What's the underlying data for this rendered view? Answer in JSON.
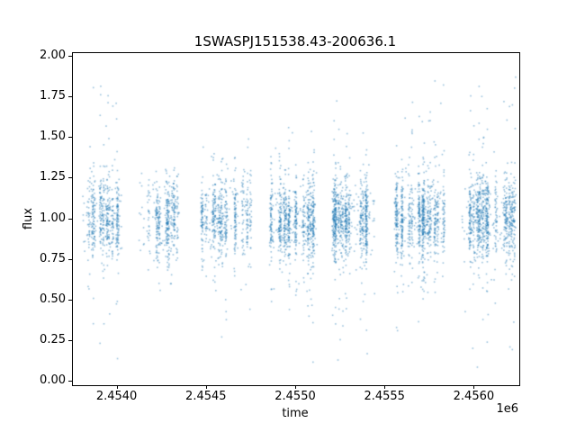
{
  "chart_data": {
    "type": "scatter",
    "title": "1SWASPJ151538.43-200636.1",
    "xlabel": "time",
    "ylabel": "flux",
    "x_offset_label": "1e6",
    "xlim": [
      2.45375,
      2.45625
    ],
    "ylim": [
      -0.02,
      2.02
    ],
    "x_unit_scale": 1000000,
    "grid": false,
    "legend": null,
    "point_color": "#1f77b4",
    "point_alpha": 0.45,
    "marker_size_px": 1.6,
    "xticks": [
      {
        "value": 2.454,
        "label": "2.4540"
      },
      {
        "value": 2.4545,
        "label": "2.4545"
      },
      {
        "value": 2.455,
        "label": "2.4550"
      },
      {
        "value": 2.4555,
        "label": "2.4555"
      },
      {
        "value": 2.456,
        "label": "2.4560"
      }
    ],
    "yticks": [
      {
        "value": 0.0,
        "label": "0.00"
      },
      {
        "value": 0.25,
        "label": "0.25"
      },
      {
        "value": 0.5,
        "label": "0.50"
      },
      {
        "value": 0.75,
        "label": "0.75"
      },
      {
        "value": 1.0,
        "label": "1.00"
      },
      {
        "value": 1.25,
        "label": "1.25"
      },
      {
        "value": 1.5,
        "label": "1.50"
      },
      {
        "value": 1.75,
        "label": "1.75"
      },
      {
        "value": 2.0,
        "label": "2.00"
      }
    ],
    "series_description": "SuperWASP light curve: seven dense observing-season clusters of flux measurements centered on flux = 1.0, core scatter sigma ~0.12, sparse outlier tails reaching ~0.05 and ~1.9",
    "distribution": {
      "core_mean": 1.0,
      "core_sigma": 0.12,
      "tail_sigma": 0.38,
      "night_sigma_t": 3.2e-06,
      "uniform_frac": 0.15
    },
    "seed": 42,
    "clusters": [
      {
        "t_start": 2.4538,
        "t_end": 2.45403,
        "n_points": 550,
        "n_nights": 14,
        "flux_min": 0.07,
        "flux_max": 1.93,
        "tail_frac": 0.18
      },
      {
        "t_start": 2.45412,
        "t_end": 2.45434,
        "n_points": 450,
        "n_nights": 12,
        "flux_min": 0.55,
        "flux_max": 1.32,
        "tail_frac": 0.1
      },
      {
        "t_start": 2.45447,
        "t_end": 2.45475,
        "n_points": 650,
        "n_nights": 16,
        "flux_min": 0.2,
        "flux_max": 1.52,
        "tail_frac": 0.12
      },
      {
        "t_start": 2.45485,
        "t_end": 2.45512,
        "n_points": 850,
        "n_nights": 16,
        "flux_min": 0.1,
        "flux_max": 1.63,
        "tail_frac": 0.12
      },
      {
        "t_start": 2.4552,
        "t_end": 2.45544,
        "n_points": 850,
        "n_nights": 15,
        "flux_min": 0.06,
        "flux_max": 1.86,
        "tail_frac": 0.14
      },
      {
        "t_start": 2.45555,
        "t_end": 2.45583,
        "n_points": 950,
        "n_nights": 16,
        "flux_min": 0.1,
        "flux_max": 1.9,
        "tail_frac": 0.15
      },
      {
        "t_start": 2.45593,
        "t_end": 2.45623,
        "n_points": 950,
        "n_nights": 17,
        "flux_min": 0.04,
        "flux_max": 1.91,
        "tail_frac": 0.15
      }
    ]
  }
}
